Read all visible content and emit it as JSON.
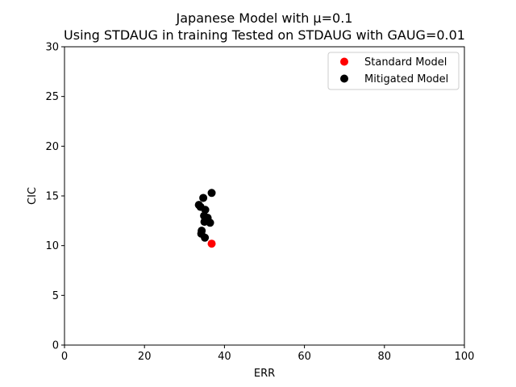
{
  "chart_data": {
    "type": "scatter",
    "title": "Japanese Model with μ=0.1",
    "subtitle": "Using STDAUG in training Tested on STDAUG with GAUG=0.01",
    "xlabel": "ERR",
    "ylabel": "CIC",
    "xlim": [
      0,
      100
    ],
    "ylim": [
      0,
      30
    ],
    "xticks": [
      "0",
      "20",
      "40",
      "60",
      "80",
      "100"
    ],
    "yticks": [
      "0",
      "5",
      "10",
      "15",
      "20",
      "25",
      "30"
    ],
    "grid": false,
    "legend_position": "top-right",
    "series": [
      {
        "name": "Standard Model",
        "color": "#ff0000",
        "points": [
          [
            36.8,
            10.2
          ]
        ]
      },
      {
        "name": "Mitigated Model",
        "color": "#000000",
        "points": [
          [
            36.8,
            15.3
          ],
          [
            34.7,
            14.8
          ],
          [
            33.6,
            14.1
          ],
          [
            34.0,
            13.9
          ],
          [
            35.2,
            13.6
          ],
          [
            34.9,
            13.0
          ],
          [
            35.8,
            12.8
          ],
          [
            35.0,
            12.4
          ],
          [
            36.4,
            12.3
          ],
          [
            34.3,
            11.5
          ],
          [
            34.2,
            11.2
          ],
          [
            35.1,
            10.8
          ]
        ]
      }
    ]
  }
}
